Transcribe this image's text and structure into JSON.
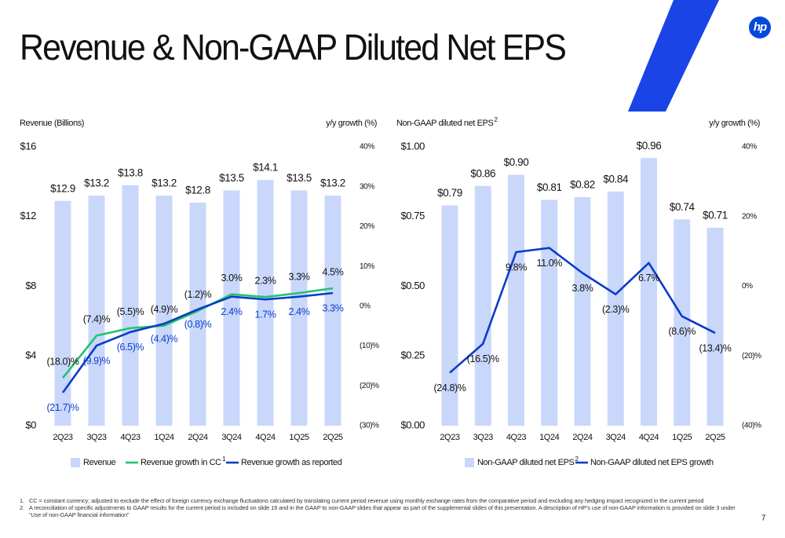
{
  "title": "Revenue & Non-GAAP Diluted Net EPS",
  "logo": "hp",
  "page_number": "7",
  "footnotes": [
    {
      "number": "1.",
      "text": "CC = constant currency; adjusted to exclude the effect of foreign currency exchange fluctuations calculated by translating current period revenue using monthly exchange rates from the comparative period and excluding any hedging impact recognized in the current period"
    },
    {
      "number": "2.",
      "text": "A reconciliation of specific adjustments to GAAP results for the current period is included on slide 19 and in the GAAP to non-GAAP slides that appear as part of the supplemental slides of this presentation. A description of HP’s use of non-GAAP information is provided on slide 3 under “Use of non-GAAP financial information”"
    }
  ],
  "chart_data": [
    {
      "type": "bar",
      "ylabel": "Revenue (Billions)",
      "y2label": "y/y growth (%)",
      "categories": [
        "2Q23",
        "3Q23",
        "4Q23",
        "1Q24",
        "2Q24",
        "3Q24",
        "4Q24",
        "1Q25",
        "2Q25"
      ],
      "series": [
        {
          "name": "Revenue",
          "type": "bar",
          "color": "#c9d7fb",
          "values": [
            12.9,
            13.2,
            13.8,
            13.2,
            12.8,
            13.5,
            14.1,
            13.5,
            13.2
          ],
          "value_labels": [
            "$12.9",
            "$13.2",
            "$13.8",
            "$13.2",
            "$12.8",
            "$13.5",
            "$14.1",
            "$13.5",
            "$13.2"
          ]
        },
        {
          "name": "Revenue growth in CC",
          "name_note": "1",
          "type": "line",
          "axis": "y2",
          "color": "#22c46e",
          "values": [
            -18.0,
            -7.4,
            -5.5,
            -4.9,
            -1.2,
            3.0,
            2.3,
            3.3,
            4.5
          ],
          "value_labels": [
            "(18.0)%",
            "(7.4)%",
            "(5.5)%",
            "(4.9)%",
            "(1.2)%",
            "3.0%",
            "2.3%",
            "3.3%",
            "4.5%"
          ]
        },
        {
          "name": "Revenue growth as reported",
          "type": "line",
          "axis": "y2",
          "color": "#0b3cc8",
          "values": [
            -21.7,
            -9.9,
            -6.5,
            -4.4,
            -0.8,
            2.4,
            1.7,
            2.4,
            3.3
          ],
          "value_labels": [
            "(21.7)%",
            "(9.9)%",
            "(6.5)%",
            "(4.4)%",
            "(0.8)%",
            "2.4%",
            "1.7%",
            "2.4%",
            "3.3%"
          ]
        }
      ],
      "ylim": [
        0,
        16
      ],
      "yticks": [
        {
          "value": 0,
          "label": "$0"
        },
        {
          "value": 4,
          "label": "$4"
        },
        {
          "value": 8,
          "label": "$8"
        },
        {
          "value": 12,
          "label": "$12"
        },
        {
          "value": 16,
          "label": "$16"
        }
      ],
      "y2lim": [
        -30,
        40
      ],
      "y2ticks": [
        {
          "value": -30,
          "label": "(30)%"
        },
        {
          "value": -20,
          "label": "(20)%"
        },
        {
          "value": -10,
          "label": "(10)%"
        },
        {
          "value": 0,
          "label": "0%"
        },
        {
          "value": 10,
          "label": "10%"
        },
        {
          "value": 20,
          "label": "20%"
        },
        {
          "value": 30,
          "label": "30%"
        },
        {
          "value": 40,
          "label": "40%"
        }
      ],
      "grid": false
    },
    {
      "type": "bar",
      "ylabel": "Non-GAAP diluted net EPS",
      "ylabel_note": "2",
      "y2label": "y/y growth (%)",
      "categories": [
        "2Q23",
        "3Q23",
        "4Q23",
        "1Q24",
        "2Q24",
        "3Q24",
        "4Q24",
        "1Q25",
        "2Q25"
      ],
      "series": [
        {
          "name": "Non-GAAP diluted net EPS",
          "name_note": "2",
          "type": "bar",
          "color": "#c9d7fb",
          "values": [
            0.79,
            0.86,
            0.9,
            0.81,
            0.82,
            0.84,
            0.96,
            0.74,
            0.71
          ],
          "value_labels": [
            "$0.79",
            "$0.86",
            "$0.90",
            "$0.81",
            "$0.82",
            "$0.84",
            "$0.96",
            "$0.74",
            "$0.71"
          ]
        },
        {
          "name": "Non-GAAP diluted net EPS growth",
          "type": "line",
          "axis": "y2",
          "color": "#0b3cc8",
          "values": [
            -24.8,
            -16.5,
            9.8,
            11.0,
            3.8,
            -2.3,
            6.7,
            -8.6,
            -13.4
          ],
          "value_labels": [
            "(24.8)%",
            "(16.5)%",
            "9.8%",
            "11.0%",
            "3.8%",
            "(2.3)%",
            "6.7%",
            "(8.6)%",
            "(13.4)%"
          ]
        }
      ],
      "ylim": [
        0,
        1.0
      ],
      "yticks": [
        {
          "value": 0,
          "label": "$0.00"
        },
        {
          "value": 0.25,
          "label": "$0.25"
        },
        {
          "value": 0.5,
          "label": "$0.50"
        },
        {
          "value": 0.75,
          "label": "$0.75"
        },
        {
          "value": 1.0,
          "label": "$1.00"
        }
      ],
      "y2lim": [
        -40,
        40
      ],
      "y2ticks": [
        {
          "value": -40,
          "label": "(40)%"
        },
        {
          "value": -20,
          "label": "(20)%"
        },
        {
          "value": 0,
          "label": "0%"
        },
        {
          "value": 20,
          "label": "20%"
        },
        {
          "value": 40,
          "label": "40%"
        }
      ],
      "grid": false
    }
  ]
}
